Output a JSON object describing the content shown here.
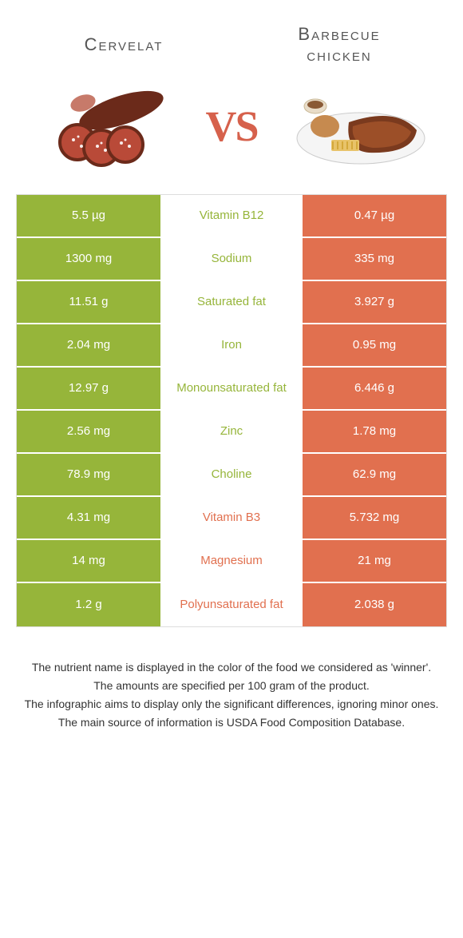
{
  "colors": {
    "green": "#96b53a",
    "orange": "#e1704f",
    "vs": "#d6614c",
    "title": "#555555",
    "footer": "#333333"
  },
  "food_left": {
    "title": "Cervelat"
  },
  "food_right": {
    "title_line1": "Barbecue",
    "title_line2": "chicken"
  },
  "vs_label": "VS",
  "rows": [
    {
      "left": "5.5 µg",
      "mid": "Vitamin B12",
      "right": "0.47 µg",
      "winner": "left"
    },
    {
      "left": "1300 mg",
      "mid": "Sodium",
      "right": "335 mg",
      "winner": "left"
    },
    {
      "left": "11.51 g",
      "mid": "Saturated fat",
      "right": "3.927 g",
      "winner": "left"
    },
    {
      "left": "2.04 mg",
      "mid": "Iron",
      "right": "0.95 mg",
      "winner": "left"
    },
    {
      "left": "12.97 g",
      "mid": "Monounsaturated fat",
      "right": "6.446 g",
      "winner": "left"
    },
    {
      "left": "2.56 mg",
      "mid": "Zinc",
      "right": "1.78 mg",
      "winner": "left"
    },
    {
      "left": "78.9 mg",
      "mid": "Choline",
      "right": "62.9 mg",
      "winner": "left"
    },
    {
      "left": "4.31 mg",
      "mid": "Vitamin B3",
      "right": "5.732 mg",
      "winner": "right"
    },
    {
      "left": "14 mg",
      "mid": "Magnesium",
      "right": "21 mg",
      "winner": "right"
    },
    {
      "left": "1.2 g",
      "mid": "Polyunsaturated fat",
      "right": "2.038 g",
      "winner": "right"
    }
  ],
  "footer": [
    "The nutrient name is displayed in the color of the food we considered as 'winner'.",
    "The amounts are specified per 100 gram of the product.",
    "The infographic aims to display only the significant differences, ignoring minor ones.",
    "The main source of information is USDA Food Composition Database."
  ]
}
